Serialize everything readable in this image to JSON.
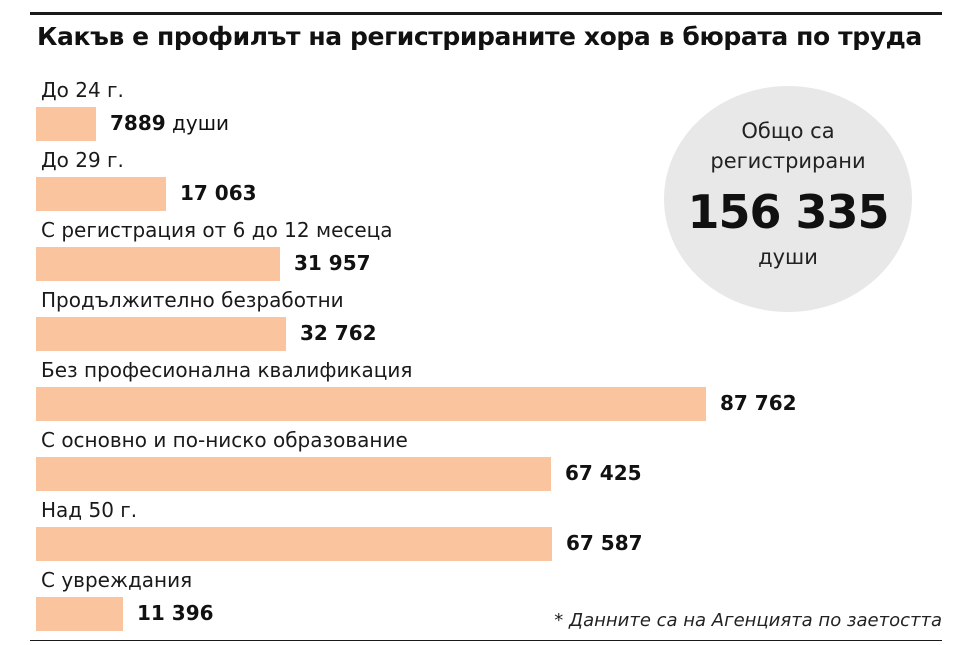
{
  "header": {
    "title": "Какъв е профилът на регистрираните хора в бюрата по труда"
  },
  "total": {
    "line1": "Общо са",
    "line2": "регистрирани",
    "value": "156 335",
    "unit": "души"
  },
  "note": "* Данните са на Агенцията по заетостта",
  "colors": {
    "bar": "#fac49e",
    "circle": "#e8e8e8",
    "text": "#111111"
  },
  "chart_data": {
    "type": "bar",
    "orientation": "horizontal",
    "title": "Какъв е профилът на регистрираните хора в бюрата по труда",
    "categories": [
      "До 24 г.",
      "До 29 г.",
      "С регистрация от 6 до 12 месеца",
      "Продължително безработни",
      "Без професионална квалификация",
      "С основно и по-ниско образование",
      "Над 50 г.",
      "С увреждания"
    ],
    "values": [
      7889,
      17063,
      31957,
      32762,
      87762,
      67425,
      67587,
      11396
    ],
    "value_labels": [
      "7889",
      "17 063",
      "31 957",
      "32 762",
      "87 762",
      "67 425",
      "67 587",
      "11 396"
    ],
    "first_value_suffix": "души",
    "grid": false,
    "legend": "none"
  }
}
